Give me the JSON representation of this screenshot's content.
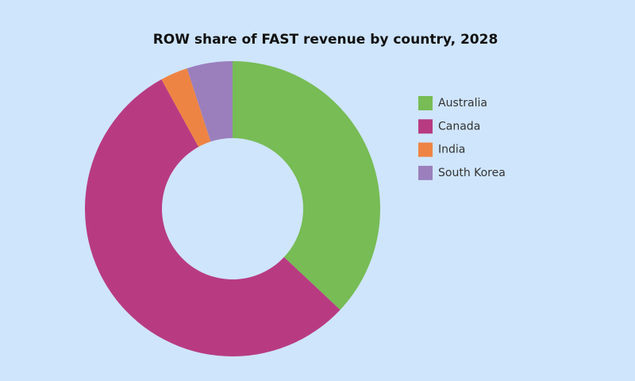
{
  "chart_data": {
    "type": "donut",
    "title": "ROW share of FAST revenue by country, 2028",
    "categories": [
      "Australia",
      "Canada",
      "India",
      "South Korea"
    ],
    "values": [
      37,
      55,
      3,
      5
    ],
    "colors": [
      "#77bc55",
      "#b83b82",
      "#ee8444",
      "#9b7fbd"
    ],
    "legend": "right"
  }
}
